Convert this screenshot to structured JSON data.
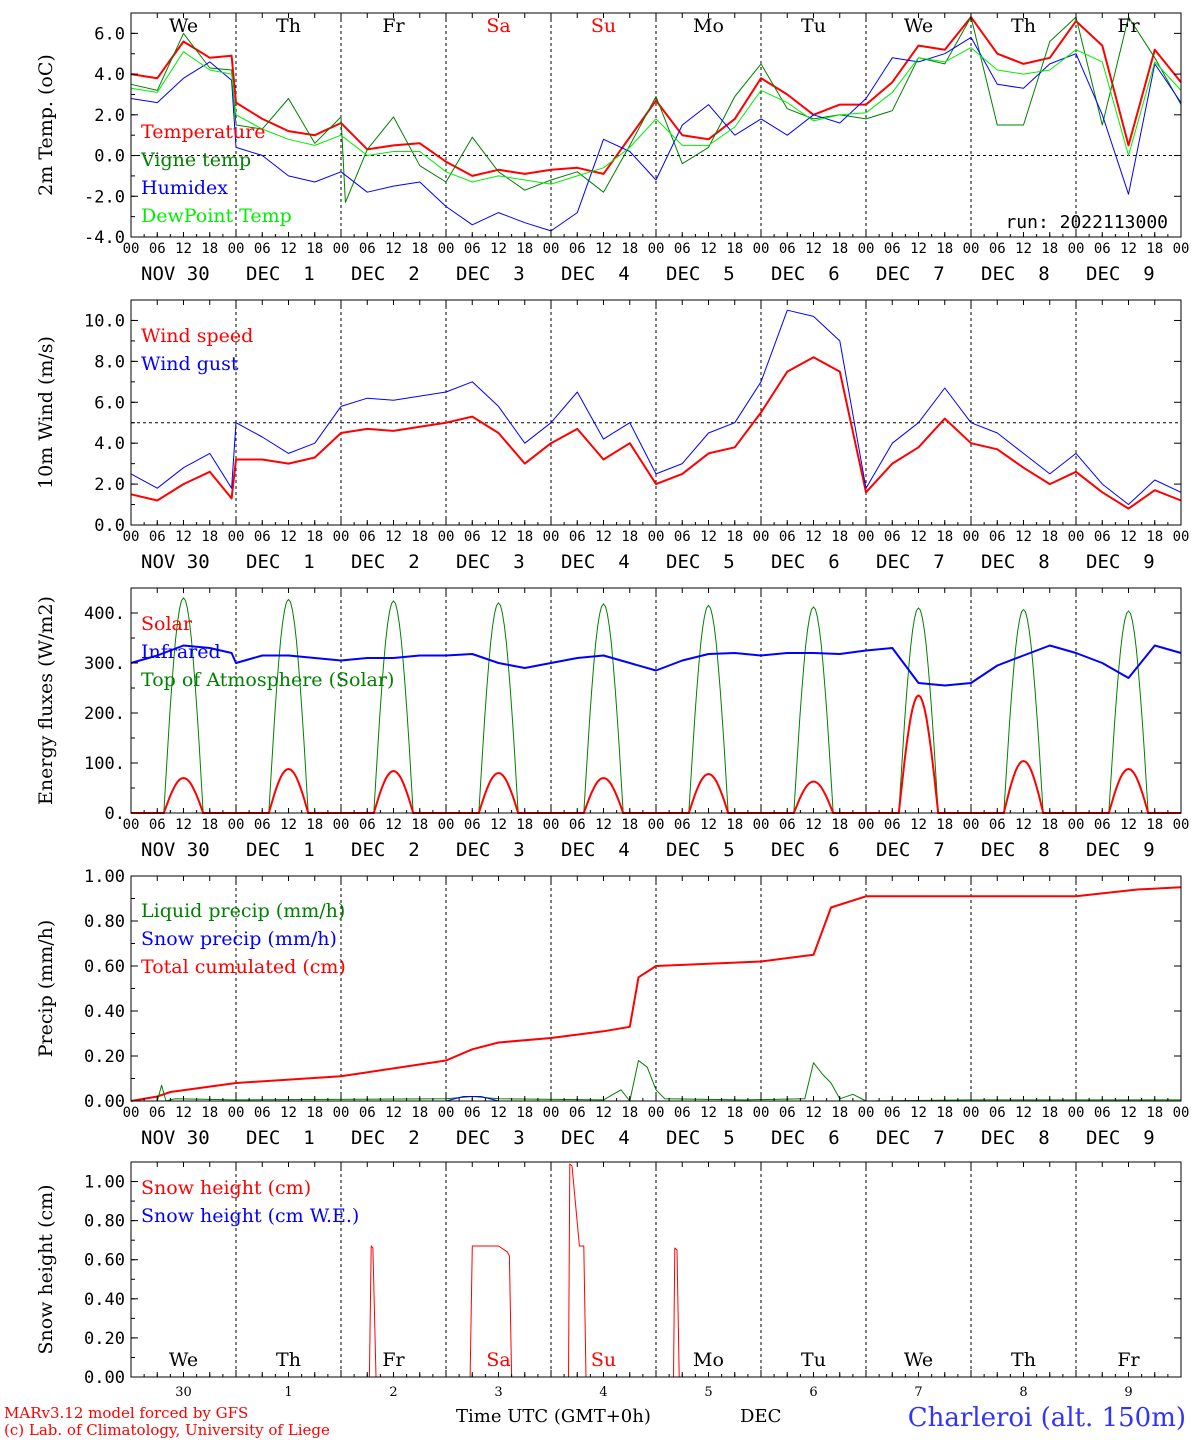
{
  "colors": {
    "red": "#ff0000",
    "dark_green": "#008000",
    "blue": "#0000ff",
    "light_green": "#00ee00",
    "axis": "#000000",
    "weekend_label": "#ff0000"
  },
  "days": {
    "weekday_labels": [
      "We",
      "Th",
      "Fr",
      "Sa",
      "Su",
      "Mo",
      "Tu",
      "We",
      "Th",
      "Fr"
    ],
    "weekend_flags": [
      false,
      false,
      false,
      true,
      true,
      false,
      false,
      false,
      false,
      false
    ],
    "date_labels": [
      "NOV 30",
      "DEC  1",
      "DEC  2",
      "DEC  3",
      "DEC  4",
      "DEC  5",
      "DEC  6",
      "DEC  7",
      "DEC  8",
      "DEC  9"
    ],
    "day_numbers": [
      "30",
      "1",
      "2",
      "3",
      "4",
      "5",
      "6",
      "7",
      "8",
      "9"
    ],
    "hour_ticks": [
      "00",
      "06",
      "12",
      "18"
    ],
    "final_hour_tick": "00"
  },
  "chart_data": [
    {
      "id": "temp",
      "type": "line",
      "ylabel": "2m Temp. (oC)",
      "ylim": [
        -4,
        7
      ],
      "yticks": [
        -4,
        -2,
        0,
        2,
        4,
        6
      ],
      "ytick_labels": [
        "-4.0",
        "-2.0",
        "0.0",
        "2.0",
        "4.0",
        "6.0"
      ],
      "reference_line": 0,
      "x_unit": "hours since 2022-11-30 00 UTC",
      "annotation": "run: 2022113000",
      "legend": [
        {
          "label": "Temperature",
          "color": "#ff0000"
        },
        {
          "label": "Vigne temp",
          "color": "#008000"
        },
        {
          "label": "Humidex",
          "color": "#0000ff"
        },
        {
          "label": "DewPoint Temp",
          "color": "#00ee00"
        }
      ],
      "series": [
        {
          "name": "Temperature",
          "color": "#ff0000",
          "width": 2,
          "x": [
            0,
            6,
            12,
            18,
            23,
            24,
            30,
            36,
            42,
            48,
            54,
            60,
            66,
            72,
            78,
            84,
            90,
            96,
            102,
            108,
            114,
            120,
            126,
            132,
            138,
            144,
            150,
            156,
            162,
            168,
            174,
            180,
            186,
            192,
            198,
            204,
            210,
            216,
            222,
            228,
            234,
            240
          ],
          "y": [
            4,
            3.8,
            5.6,
            4.8,
            4.9,
            2.6,
            1.8,
            1.2,
            1.0,
            1.6,
            0.3,
            0.5,
            0.6,
            -0.3,
            -1.0,
            -0.7,
            -0.9,
            -0.7,
            -0.6,
            -0.9,
            0.9,
            2.7,
            1.0,
            0.8,
            1.8,
            3.8,
            3.0,
            2.0,
            2.5,
            2.5,
            3.6,
            5.4,
            5.2,
            6.8,
            5.0,
            4.5,
            4.8,
            6.6,
            5.4,
            0.5,
            5.2,
            3.6
          ]
        },
        {
          "name": "Vigne temp",
          "color": "#008000",
          "width": 1,
          "x": [
            0,
            6,
            12,
            18,
            23,
            24,
            30,
            36,
            42,
            48,
            49,
            54,
            60,
            66,
            72,
            78,
            84,
            90,
            96,
            102,
            108,
            114,
            120,
            126,
            132,
            138,
            144,
            150,
            156,
            162,
            168,
            174,
            180,
            186,
            192,
            198,
            204,
            210,
            216,
            222,
            228,
            234,
            240
          ],
          "y": [
            3.5,
            3.2,
            6.0,
            4.3,
            4.2,
            1.5,
            1.3,
            2.8,
            0.6,
            1.9,
            -2.3,
            0.3,
            1.9,
            -0.5,
            -1.3,
            0.9,
            -0.8,
            -1.7,
            -1.2,
            -0.8,
            -1.8,
            0.5,
            2.9,
            -0.4,
            0.4,
            2.9,
            4.5,
            2.3,
            1.8,
            2.0,
            1.8,
            2.2,
            4.8,
            4.5,
            6.8,
            1.5,
            1.5,
            5.6,
            6.8,
            1.5,
            6.8,
            4.8,
            2.5
          ]
        },
        {
          "name": "Humidex",
          "color": "#0000ff",
          "width": 1,
          "x": [
            0,
            6,
            12,
            18,
            23,
            24,
            30,
            36,
            42,
            48,
            54,
            60,
            66,
            72,
            78,
            84,
            90,
            96,
            102,
            108,
            114,
            120,
            126,
            132,
            138,
            144,
            150,
            156,
            162,
            168,
            174,
            180,
            186,
            192,
            198,
            204,
            210,
            216,
            222,
            228,
            234,
            240
          ],
          "y": [
            2.8,
            2.6,
            3.8,
            4.6,
            3.7,
            0.4,
            0.0,
            -1.0,
            -1.3,
            -0.8,
            -1.8,
            -1.5,
            -1.3,
            -2.5,
            -3.4,
            -2.8,
            -3.3,
            -3.7,
            -2.8,
            0.8,
            0.2,
            -1.2,
            1.5,
            2.5,
            1.0,
            1.8,
            1.0,
            2.0,
            1.6,
            2.8,
            4.8,
            4.6,
            5.0,
            5.8,
            3.5,
            3.3,
            4.5,
            5.0,
            2.0,
            -1.9,
            4.5,
            2.6
          ]
        },
        {
          "name": "DewPoint Temp",
          "color": "#00ee00",
          "width": 1,
          "x": [
            0,
            6,
            12,
            18,
            23,
            24,
            30,
            36,
            42,
            48,
            54,
            60,
            66,
            72,
            78,
            84,
            90,
            96,
            102,
            108,
            114,
            120,
            126,
            132,
            138,
            144,
            150,
            156,
            162,
            168,
            174,
            180,
            186,
            192,
            198,
            204,
            210,
            216,
            222,
            228,
            234,
            240
          ],
          "y": [
            3.3,
            3.1,
            5.1,
            4.2,
            4.0,
            2.0,
            1.3,
            0.8,
            0.5,
            1.0,
            0.0,
            0.2,
            0.2,
            -0.8,
            -1.3,
            -1.0,
            -1.2,
            -1.4,
            -1.0,
            -0.6,
            0.4,
            1.8,
            0.5,
            0.5,
            1.4,
            3.2,
            2.6,
            1.7,
            2.0,
            2.1,
            3.1,
            4.8,
            4.6,
            5.3,
            4.2,
            4.0,
            4.2,
            5.2,
            4.6,
            0.0,
            4.6,
            3.2
          ]
        }
      ]
    },
    {
      "id": "wind",
      "type": "line",
      "ylabel": "10m Wind (m/s)",
      "ylim": [
        0,
        11
      ],
      "yticks": [
        0,
        2,
        4,
        6,
        8,
        10
      ],
      "ytick_labels": [
        "0.0",
        "2.0",
        "4.0",
        "6.0",
        "8.0",
        "10.0"
      ],
      "reference_line": 5,
      "x_unit": "hours since 2022-11-30 00 UTC",
      "legend": [
        {
          "label": "Wind speed",
          "color": "#ff0000"
        },
        {
          "label": "Wind gust",
          "color": "#0000ff"
        }
      ],
      "series": [
        {
          "name": "Wind speed",
          "color": "#ff0000",
          "width": 2,
          "x": [
            0,
            6,
            12,
            18,
            23,
            24,
            30,
            36,
            42,
            48,
            54,
            60,
            66,
            72,
            78,
            84,
            90,
            96,
            102,
            108,
            114,
            120,
            126,
            132,
            138,
            144,
            150,
            156,
            162,
            168,
            174,
            180,
            186,
            192,
            198,
            204,
            210,
            216,
            222,
            228,
            234,
            240
          ],
          "y": [
            1.5,
            1.2,
            2.0,
            2.6,
            1.3,
            3.2,
            3.2,
            3.0,
            3.3,
            4.5,
            4.7,
            4.6,
            4.8,
            5.0,
            5.3,
            4.5,
            3.0,
            4.0,
            4.7,
            3.2,
            4.0,
            2.0,
            2.5,
            3.5,
            3.8,
            5.5,
            7.5,
            8.2,
            7.5,
            1.6,
            3.0,
            3.8,
            5.2,
            4.0,
            3.7,
            2.8,
            2.0,
            2.6,
            1.6,
            0.8,
            1.7,
            1.2
          ]
        },
        {
          "name": "Wind gust",
          "color": "#0000ff",
          "width": 1,
          "x": [
            0,
            6,
            12,
            18,
            23,
            24,
            30,
            36,
            42,
            48,
            54,
            60,
            66,
            72,
            78,
            84,
            90,
            96,
            102,
            108,
            114,
            120,
            126,
            132,
            138,
            144,
            150,
            156,
            162,
            168,
            174,
            180,
            186,
            192,
            198,
            204,
            210,
            216,
            222,
            228,
            234,
            240
          ],
          "y": [
            2.5,
            1.8,
            2.8,
            3.5,
            1.8,
            5.0,
            4.3,
            3.5,
            4.0,
            5.8,
            6.2,
            6.1,
            6.3,
            6.5,
            7.0,
            5.8,
            4.0,
            5.0,
            6.5,
            4.2,
            5.0,
            2.5,
            3.0,
            4.5,
            5.0,
            7.0,
            10.5,
            10.2,
            9.0,
            1.8,
            4.0,
            5.0,
            6.7,
            5.0,
            4.5,
            3.5,
            2.5,
            3.5,
            2.0,
            1.0,
            2.2,
            1.6
          ]
        }
      ]
    },
    {
      "id": "energy",
      "type": "line",
      "ylabel": "Energy fluxes (W/m2)",
      "ylim": [
        0,
        450
      ],
      "yticks": [
        0,
        100,
        200,
        300,
        400
      ],
      "ytick_labels": [
        "0.",
        "100.",
        "200.",
        "300.",
        "400."
      ],
      "x_unit": "hours since 2022-11-30 00 UTC",
      "legend": [
        {
          "label": "Solar",
          "color": "#ff0000"
        },
        {
          "label": "Infrared",
          "color": "#0000ff"
        },
        {
          "label": "Top of Atmosphere (Solar)",
          "color": "#008000"
        }
      ],
      "daily_cycle": {
        "sunrise_hour": 7.5,
        "sunset_hour": 16.5,
        "toa_peak": [
          430,
          427,
          424,
          420,
          418,
          415,
          412,
          410,
          407,
          404
        ],
        "solar_peak": [
          70,
          88,
          84,
          80,
          70,
          78,
          63,
          235,
          104,
          88
        ]
      },
      "series": [
        {
          "name": "Infrared",
          "color": "#0000ff",
          "width": 2,
          "x": [
            0,
            6,
            12,
            18,
            23,
            24,
            30,
            36,
            42,
            48,
            54,
            60,
            66,
            72,
            78,
            84,
            90,
            96,
            102,
            108,
            114,
            120,
            126,
            132,
            138,
            144,
            150,
            156,
            162,
            168,
            174,
            180,
            186,
            192,
            198,
            204,
            210,
            216,
            222,
            228,
            234,
            240
          ],
          "y": [
            300,
            315,
            335,
            330,
            320,
            300,
            315,
            315,
            310,
            305,
            310,
            310,
            315,
            315,
            318,
            300,
            290,
            300,
            310,
            315,
            300,
            285,
            305,
            318,
            320,
            315,
            320,
            320,
            318,
            325,
            330,
            260,
            255,
            260,
            295,
            315,
            335,
            320,
            300,
            270,
            335,
            320
          ]
        }
      ]
    },
    {
      "id": "precip",
      "type": "line",
      "ylabel": "Precip (mm/h)",
      "ylim": [
        0,
        1
      ],
      "yticks": [
        0,
        0.2,
        0.4,
        0.6,
        0.8,
        1.0
      ],
      "ytick_labels": [
        "0.00",
        "0.20",
        "0.40",
        "0.60",
        "0.80",
        "1.00"
      ],
      "x_unit": "hours since 2022-11-30 00 UTC",
      "legend": [
        {
          "label": "Liquid precip (mm/h)",
          "color": "#008000"
        },
        {
          "label": "Snow precip (mm/h)",
          "color": "#0000ff"
        },
        {
          "label": "Total cumulated (cm)",
          "color": "#ff0000"
        }
      ],
      "series": [
        {
          "name": "Total cumulated (cm)",
          "color": "#ff0000",
          "width": 2,
          "x": [
            0,
            6,
            9,
            24,
            48,
            72,
            78,
            84,
            96,
            108,
            114,
            116,
            120,
            144,
            156,
            160,
            168,
            192,
            216,
            230,
            240
          ],
          "y": [
            0,
            0.02,
            0.04,
            0.08,
            0.11,
            0.18,
            0.23,
            0.26,
            0.28,
            0.31,
            0.33,
            0.55,
            0.6,
            0.62,
            0.65,
            0.86,
            0.91,
            0.91,
            0.91,
            0.94,
            0.95
          ]
        },
        {
          "name": "Liquid precip (mm/h)",
          "color": "#008000",
          "width": 1,
          "x": [
            0,
            6,
            7,
            8,
            10,
            24,
            72,
            78,
            84,
            108,
            112,
            114,
            116,
            118,
            120,
            122,
            140,
            154,
            156,
            158,
            160,
            162,
            165,
            168,
            192,
            240
          ],
          "y": [
            0,
            0,
            0.07,
            0,
            0.01,
            0.005,
            0.01,
            0.02,
            0.01,
            0.005,
            0.05,
            0,
            0.18,
            0.15,
            0.05,
            0.01,
            0.005,
            0.01,
            0.17,
            0.12,
            0.08,
            0.01,
            0.03,
            0,
            0.005,
            0.005
          ]
        },
        {
          "name": "Snow precip (mm/h)",
          "color": "#0000ff",
          "width": 1,
          "x": [
            0,
            72,
            76,
            80,
            84,
            240
          ],
          "y": [
            0,
            0,
            0.02,
            0.02,
            0,
            0
          ]
        }
      ]
    },
    {
      "id": "snow",
      "type": "line",
      "ylabel": "Snow height (cm)",
      "ylim": [
        0,
        1.1
      ],
      "yticks": [
        0,
        0.2,
        0.4,
        0.6,
        0.8,
        1.0
      ],
      "ytick_labels": [
        "0.00",
        "0.20",
        "0.40",
        "0.60",
        "0.80",
        "1.00"
      ],
      "x_unit": "hours since 2022-11-30 00 UTC",
      "legend": [
        {
          "label": "Snow height (cm)",
          "color": "#ff0000"
        },
        {
          "label": "Snow height (cm W.E.)",
          "color": "#0000ff"
        }
      ],
      "series": [
        {
          "name": "Snow height (cm)",
          "color": "#ff0000",
          "width": 1,
          "x": [
            0,
            54.5,
            54.9,
            55.3,
            56,
            77.5,
            78,
            84,
            86,
            86.5,
            87,
            100,
            100.3,
            100.8,
            102.5,
            103.5,
            104,
            124,
            124.3,
            124.8,
            125.3,
            240
          ],
          "y": [
            0,
            0,
            0.67,
            0.66,
            0,
            0,
            0.67,
            0.67,
            0.64,
            0.62,
            0,
            0,
            1.09,
            1.08,
            0.67,
            0.67,
            0,
            0,
            0.66,
            0.65,
            0,
            0
          ]
        },
        {
          "name": "Snow height (cm W.E.)",
          "color": "#0000ff",
          "width": 1,
          "x": [
            0,
            240
          ],
          "y": [
            0,
            0
          ]
        }
      ]
    }
  ],
  "footer": {
    "credit_line1": "MARv3.12 model forced by GFS",
    "credit_line2": "(c) Lab. of Climatology, University of Liege",
    "xlabel": "Time UTC (GMT+0h)",
    "month_label": "DEC",
    "station": "Charleroi (alt. 150m)"
  }
}
